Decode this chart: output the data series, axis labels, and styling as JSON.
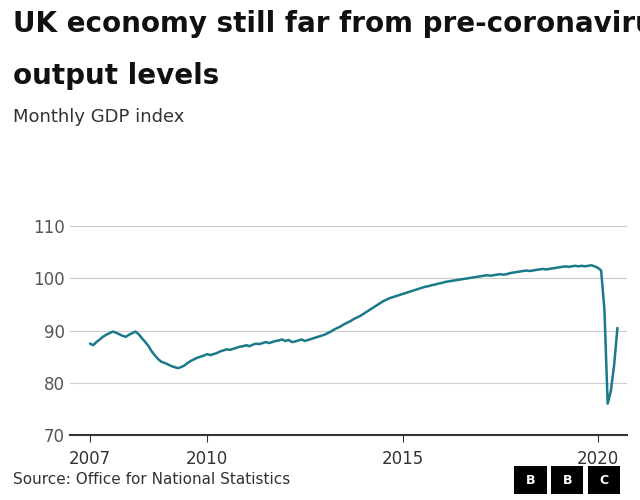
{
  "title_line1": "UK economy still far from pre-coronavirus",
  "title_line2": "output levels",
  "subtitle": "Monthly GDP index",
  "source": "Source: Office for National Statistics",
  "line_color": "#1a7a8a",
  "line_width": 1.8,
  "background_color": "#ffffff",
  "grid_color": "#cccccc",
  "ylim": [
    70,
    115
  ],
  "yticks": [
    70,
    80,
    90,
    100,
    110
  ],
  "xticks": [
    2007,
    2010,
    2015,
    2020
  ],
  "xlim": [
    2006.5,
    2020.75
  ],
  "title_fontsize": 20,
  "subtitle_fontsize": 13,
  "tick_fontsize": 12,
  "source_fontsize": 11,
  "dates": [
    2007.0,
    2007.083,
    2007.167,
    2007.25,
    2007.333,
    2007.417,
    2007.5,
    2007.583,
    2007.667,
    2007.75,
    2007.833,
    2007.917,
    2008.0,
    2008.083,
    2008.167,
    2008.25,
    2008.333,
    2008.417,
    2008.5,
    2008.583,
    2008.667,
    2008.75,
    2008.833,
    2008.917,
    2009.0,
    2009.083,
    2009.167,
    2009.25,
    2009.333,
    2009.417,
    2009.5,
    2009.583,
    2009.667,
    2009.75,
    2009.833,
    2009.917,
    2010.0,
    2010.083,
    2010.167,
    2010.25,
    2010.333,
    2010.417,
    2010.5,
    2010.583,
    2010.667,
    2010.75,
    2010.833,
    2010.917,
    2011.0,
    2011.083,
    2011.167,
    2011.25,
    2011.333,
    2011.417,
    2011.5,
    2011.583,
    2011.667,
    2011.75,
    2011.833,
    2011.917,
    2012.0,
    2012.083,
    2012.167,
    2012.25,
    2012.333,
    2012.417,
    2012.5,
    2012.583,
    2012.667,
    2012.75,
    2012.833,
    2012.917,
    2013.0,
    2013.083,
    2013.167,
    2013.25,
    2013.333,
    2013.417,
    2013.5,
    2013.583,
    2013.667,
    2013.75,
    2013.833,
    2013.917,
    2014.0,
    2014.083,
    2014.167,
    2014.25,
    2014.333,
    2014.417,
    2014.5,
    2014.583,
    2014.667,
    2014.75,
    2014.833,
    2014.917,
    2015.0,
    2015.083,
    2015.167,
    2015.25,
    2015.333,
    2015.417,
    2015.5,
    2015.583,
    2015.667,
    2015.75,
    2015.833,
    2015.917,
    2016.0,
    2016.083,
    2016.167,
    2016.25,
    2016.333,
    2016.417,
    2016.5,
    2016.583,
    2016.667,
    2016.75,
    2016.833,
    2016.917,
    2017.0,
    2017.083,
    2017.167,
    2017.25,
    2017.333,
    2017.417,
    2017.5,
    2017.583,
    2017.667,
    2017.75,
    2017.833,
    2017.917,
    2018.0,
    2018.083,
    2018.167,
    2018.25,
    2018.333,
    2018.417,
    2018.5,
    2018.583,
    2018.667,
    2018.75,
    2018.833,
    2018.917,
    2019.0,
    2019.083,
    2019.167,
    2019.25,
    2019.333,
    2019.417,
    2019.5,
    2019.583,
    2019.667,
    2019.75,
    2019.833,
    2019.917,
    2020.0,
    2020.083,
    2020.167,
    2020.25,
    2020.333,
    2020.417,
    2020.5
  ],
  "values": [
    87.5,
    87.2,
    87.8,
    88.3,
    88.8,
    89.2,
    89.5,
    89.8,
    89.6,
    89.3,
    89.0,
    88.8,
    89.2,
    89.5,
    89.8,
    89.3,
    88.5,
    87.8,
    87.0,
    86.0,
    85.2,
    84.5,
    84.0,
    83.8,
    83.5,
    83.2,
    83.0,
    82.8,
    83.0,
    83.3,
    83.8,
    84.2,
    84.5,
    84.8,
    85.0,
    85.2,
    85.5,
    85.3,
    85.5,
    85.7,
    86.0,
    86.2,
    86.4,
    86.3,
    86.5,
    86.7,
    86.9,
    87.0,
    87.2,
    87.0,
    87.3,
    87.5,
    87.4,
    87.6,
    87.8,
    87.6,
    87.8,
    88.0,
    88.1,
    88.3,
    88.0,
    88.2,
    87.8,
    87.9,
    88.1,
    88.3,
    88.0,
    88.2,
    88.4,
    88.6,
    88.8,
    89.0,
    89.2,
    89.5,
    89.8,
    90.2,
    90.5,
    90.8,
    91.2,
    91.5,
    91.8,
    92.2,
    92.5,
    92.8,
    93.2,
    93.6,
    94.0,
    94.4,
    94.8,
    95.2,
    95.6,
    95.9,
    96.2,
    96.4,
    96.6,
    96.8,
    97.0,
    97.2,
    97.4,
    97.6,
    97.8,
    98.0,
    98.2,
    98.4,
    98.5,
    98.7,
    98.8,
    99.0,
    99.1,
    99.3,
    99.4,
    99.5,
    99.6,
    99.7,
    99.8,
    99.9,
    100.0,
    100.1,
    100.2,
    100.3,
    100.4,
    100.5,
    100.6,
    100.5,
    100.6,
    100.7,
    100.8,
    100.7,
    100.8,
    101.0,
    101.1,
    101.2,
    101.3,
    101.4,
    101.5,
    101.4,
    101.5,
    101.6,
    101.7,
    101.8,
    101.7,
    101.8,
    101.9,
    102.0,
    102.1,
    102.2,
    102.3,
    102.2,
    102.3,
    102.4,
    102.3,
    102.4,
    102.3,
    102.4,
    102.5,
    102.3,
    102.0,
    101.5,
    94.0,
    76.0,
    78.5,
    83.5,
    90.5
  ]
}
